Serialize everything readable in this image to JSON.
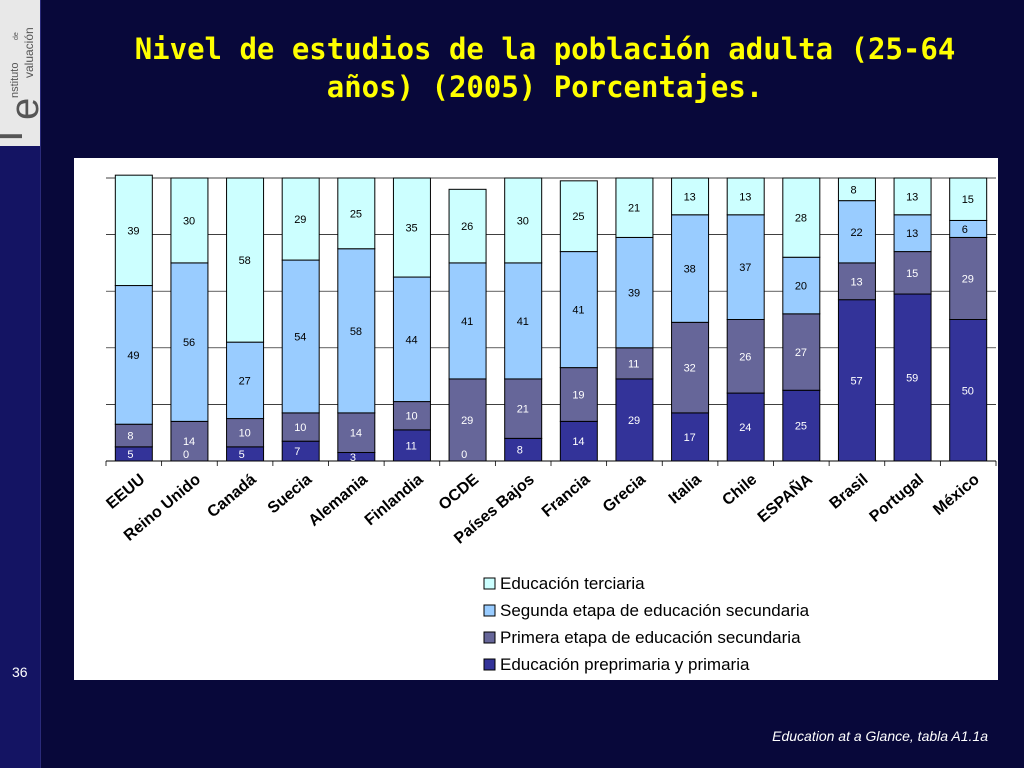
{
  "slide": {
    "title_line1": "Nivel de estudios de la población adulta (25-64",
    "title_line2": "años) (2005) Porcentajes.",
    "page_number": "36",
    "source": "Education at a Glance, tabla  A1.1a",
    "logo": {
      "text": "Instituto de Evaluación",
      "line_top": "nstituto",
      "line_small": "de",
      "line_bottom": "valuación",
      "initials": [
        "I",
        "e"
      ]
    },
    "colors": {
      "background": "#08083a",
      "title": "#ffff00",
      "left_strip": "#141463"
    }
  },
  "chart_data": {
    "type": "bar",
    "stacked": true,
    "categories": [
      "EEUU",
      "Reino Unido",
      "Canadá",
      "Suecia",
      "Alemania",
      "Finlandia",
      "OCDE",
      "Países Bajos",
      "Francia",
      "Grecia",
      "Italia",
      "Chile",
      "ESPAÑA",
      "Brasil",
      "Portugal",
      "México"
    ],
    "series": [
      {
        "name": "Educación preprimaria y primaria",
        "color": "#333399",
        "values": [
          5,
          0,
          5,
          7,
          3,
          11,
          0,
          8,
          14,
          29,
          17,
          24,
          25,
          57,
          59,
          50
        ]
      },
      {
        "name": "Primera etapa de educación secundaria",
        "color": "#666699",
        "values": [
          8,
          14,
          10,
          10,
          14,
          10,
          29,
          21,
          19,
          11,
          32,
          26,
          27,
          13,
          15,
          29
        ]
      },
      {
        "name": "Segunda etapa de educación secundaria",
        "color": "#99ccff",
        "values": [
          49,
          56,
          27,
          54,
          58,
          44,
          41,
          41,
          41,
          39,
          38,
          37,
          20,
          22,
          13,
          6
        ]
      },
      {
        "name": "Educación terciaria",
        "color": "#ccffff",
        "values": [
          39,
          30,
          58,
          29,
          25,
          35,
          26,
          30,
          25,
          21,
          13,
          13,
          28,
          8,
          13,
          15
        ]
      }
    ],
    "legend_order": [
      3,
      2,
      1,
      0
    ],
    "legend_position": "bottom-right",
    "ylim": [
      0,
      100
    ],
    "gridlines": [
      20,
      40,
      60,
      80,
      100
    ],
    "title": "",
    "xlabel": "",
    "ylabel": ""
  }
}
